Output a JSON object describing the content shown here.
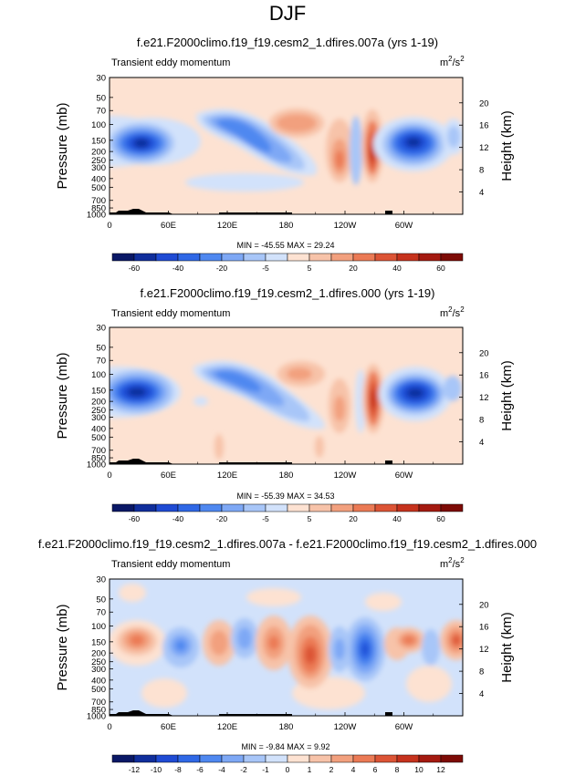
{
  "figure": {
    "title": "DJF"
  },
  "levels": [
    -70,
    -60,
    -50,
    -40,
    -30,
    -20,
    -10,
    -5,
    0,
    5,
    10,
    20,
    30,
    40,
    50,
    60,
    70
  ],
  "colors": [
    "#0a1866",
    "#102e9c",
    "#1f4bd4",
    "#2f68e6",
    "#4f88f0",
    "#7ea8f5",
    "#a8c6f8",
    "#d2e2fb",
    "#fde2d2",
    "#f7c3a9",
    "#f2a07e",
    "#eb7a55",
    "#dc5435",
    "#c6321d",
    "#a41a10",
    "#7d0b06"
  ],
  "cb_labels": [
    "-60",
    "-40",
    "-20",
    "-5",
    "5",
    "20",
    "40",
    "60"
  ],
  "diff_cb_labels": [
    "-12",
    "-10",
    "-8",
    "-6",
    "-4",
    "-2",
    "-1",
    "0",
    "1",
    "2",
    "4",
    "6",
    "8",
    "10",
    "12"
  ],
  "panels": [
    {
      "id": "p1",
      "title": "f.e21.F2000climo.f19_f19.cesm2_1.dfires.007a (yrs 1-19)",
      "left_label": "Transient eddy momentum",
      "units_base": "m",
      "units_exp1": "2",
      "units_mid": "/s",
      "units_exp2": "2",
      "stats": "MIN = -45.55   MAX = 29.24",
      "chart_data": {
        "type": "heatmap",
        "variable": "Transient eddy momentum",
        "xlabel": "",
        "ylabel": "Pressure (mb)",
        "y2label": "Height (km)",
        "xticks": [
          "0",
          "60E",
          "120E",
          "180",
          "120W",
          "60W"
        ],
        "yticks": [
          "30",
          "50",
          "70",
          "100",
          "150",
          "200",
          "250",
          "300",
          "400",
          "500",
          "700",
          "850",
          "1000"
        ],
        "y2ticks": [
          "20",
          "16",
          "12",
          "8",
          "4"
        ],
        "min": -45.55,
        "max": 29.24,
        "features": [
          {
            "lon": 35,
            "p": 150,
            "value": -45
          },
          {
            "lon": 125,
            "p": 110,
            "value": -35
          },
          {
            "lon": 165,
            "p": 160,
            "value": -20
          },
          {
            "lon": 215,
            "p": 100,
            "value": 12
          },
          {
            "lon": 240,
            "p": 200,
            "value": 20
          },
          {
            "lon": 260,
            "p": 200,
            "value": 28
          },
          {
            "lon": 310,
            "p": 150,
            "value": -42
          }
        ]
      }
    },
    {
      "id": "p2",
      "title": "f.e21.F2000climo.f19_f19.cesm2_1.dfires.000 (yrs 1-19)",
      "left_label": "Transient eddy momentum",
      "units_base": "m",
      "units_exp1": "2",
      "units_mid": "/s",
      "units_exp2": "2",
      "stats": "MIN = -55.39   MAX = 34.53",
      "chart_data": {
        "type": "heatmap",
        "variable": "Transient eddy momentum",
        "xlabel": "",
        "ylabel": "Pressure (mb)",
        "y2label": "Height (km)",
        "xticks": [
          "0",
          "60E",
          "120E",
          "180",
          "120W",
          "60W"
        ],
        "yticks": [
          "30",
          "50",
          "70",
          "100",
          "150",
          "200",
          "250",
          "300",
          "400",
          "500",
          "700",
          "850",
          "1000"
        ],
        "y2ticks": [
          "20",
          "16",
          "12",
          "8",
          "4"
        ],
        "min": -55.39,
        "max": 34.53,
        "features": [
          {
            "lon": 30,
            "p": 150,
            "value": -50
          },
          {
            "lon": 125,
            "p": 110,
            "value": -35
          },
          {
            "lon": 170,
            "p": 150,
            "value": -20
          },
          {
            "lon": 205,
            "p": 100,
            "value": 12
          },
          {
            "lon": 262,
            "p": 200,
            "value": 34
          },
          {
            "lon": 305,
            "p": 150,
            "value": -55
          }
        ]
      }
    },
    {
      "id": "p3",
      "title": "f.e21.F2000climo.f19_f19.cesm2_1.dfires.007a - f.e21.F2000climo.f19_f19.cesm2_1.dfires.000",
      "left_label": "Transient eddy momentum",
      "units_base": "m",
      "units_exp1": "2",
      "units_mid": "/s",
      "units_exp2": "2",
      "stats": "MIN = -9.84   MAX = 9.92",
      "chart_data": {
        "type": "heatmap",
        "variable": "Transient eddy momentum difference",
        "xlabel": "",
        "ylabel": "Pressure (mb)",
        "y2label": "Height (km)",
        "xticks": [
          "0",
          "60E",
          "120E",
          "180",
          "120W",
          "60W"
        ],
        "yticks": [
          "30",
          "50",
          "70",
          "100",
          "150",
          "200",
          "250",
          "300",
          "400",
          "500",
          "700",
          "850",
          "1000"
        ],
        "y2ticks": [
          "20",
          "16",
          "12",
          "8",
          "4"
        ],
        "min": -9.84,
        "max": 9.92,
        "features": [
          {
            "lon": 20,
            "p": 150,
            "value": 8
          },
          {
            "lon": 60,
            "p": 150,
            "value": -6
          },
          {
            "lon": 100,
            "p": 150,
            "value": 5
          },
          {
            "lon": 140,
            "p": 150,
            "value": -6
          },
          {
            "lon": 170,
            "p": 150,
            "value": 6
          },
          {
            "lon": 200,
            "p": 200,
            "value": 9
          },
          {
            "lon": 225,
            "p": 200,
            "value": -5
          },
          {
            "lon": 260,
            "p": 180,
            "value": -9.8
          },
          {
            "lon": 290,
            "p": 150,
            "value": 8
          },
          {
            "lon": 320,
            "p": 150,
            "value": 7
          },
          {
            "lon": 350,
            "p": 150,
            "value": 9
          }
        ]
      }
    }
  ]
}
